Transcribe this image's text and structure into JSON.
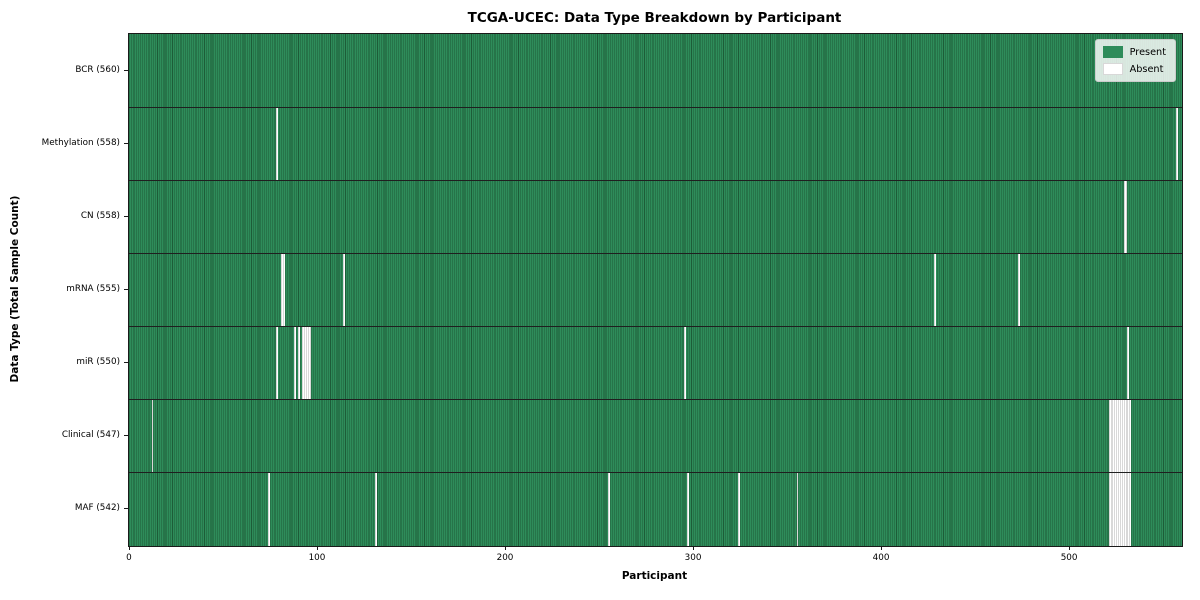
{
  "chart_data": {
    "type": "heatmap",
    "title": "TCGA-UCEC: Data Type Breakdown by Participant",
    "xlabel": "Participant",
    "ylabel": "Data Type (Total Sample Count)",
    "total_participants": 560,
    "xlim": [
      0,
      560
    ],
    "x_ticks": [
      0,
      100,
      200,
      300,
      400,
      500
    ],
    "grid": false,
    "legend_position": "upper right",
    "legend": [
      {
        "label": "Present",
        "color": "#2e8c5a"
      },
      {
        "label": "Absent",
        "color": "#ffffff"
      }
    ],
    "colors": {
      "present": "#2e8c5a",
      "cell_edge": "#1d5c38",
      "absent": "#ffffff",
      "axis": "#1a1a1a"
    },
    "rows": [
      {
        "name": "BCR",
        "label": "BCR (560)",
        "present_count": 560,
        "absent_participants": []
      },
      {
        "name": "Methylation",
        "label": "Methylation (558)",
        "present_count": 558,
        "absent_participants": [
          78,
          557
        ]
      },
      {
        "name": "CN",
        "label": "CN (558)",
        "present_count": 558,
        "absent_participants": [
          529,
          530
        ]
      },
      {
        "name": "mRNA",
        "label": "mRNA (555)",
        "present_count": 555,
        "absent_participants": [
          81,
          82,
          114,
          428,
          473
        ]
      },
      {
        "name": "miR",
        "label": "miR (550)",
        "present_count": 550,
        "absent_participants": [
          78,
          88,
          90,
          92,
          93,
          94,
          95,
          96,
          295,
          531
        ]
      },
      {
        "name": "Clinical",
        "label": "Clinical (547)",
        "present_count": 547,
        "absent_participants": [
          12,
          521,
          522,
          523,
          524,
          525,
          526,
          527,
          528,
          529,
          530,
          531,
          532
        ]
      },
      {
        "name": "MAF",
        "label": "MAF (542)",
        "present_count": 542,
        "absent_participants": [
          74,
          131,
          255,
          297,
          324,
          355,
          521,
          522,
          523,
          524,
          525,
          526,
          527,
          528,
          529,
          530,
          531,
          532
        ]
      }
    ]
  }
}
